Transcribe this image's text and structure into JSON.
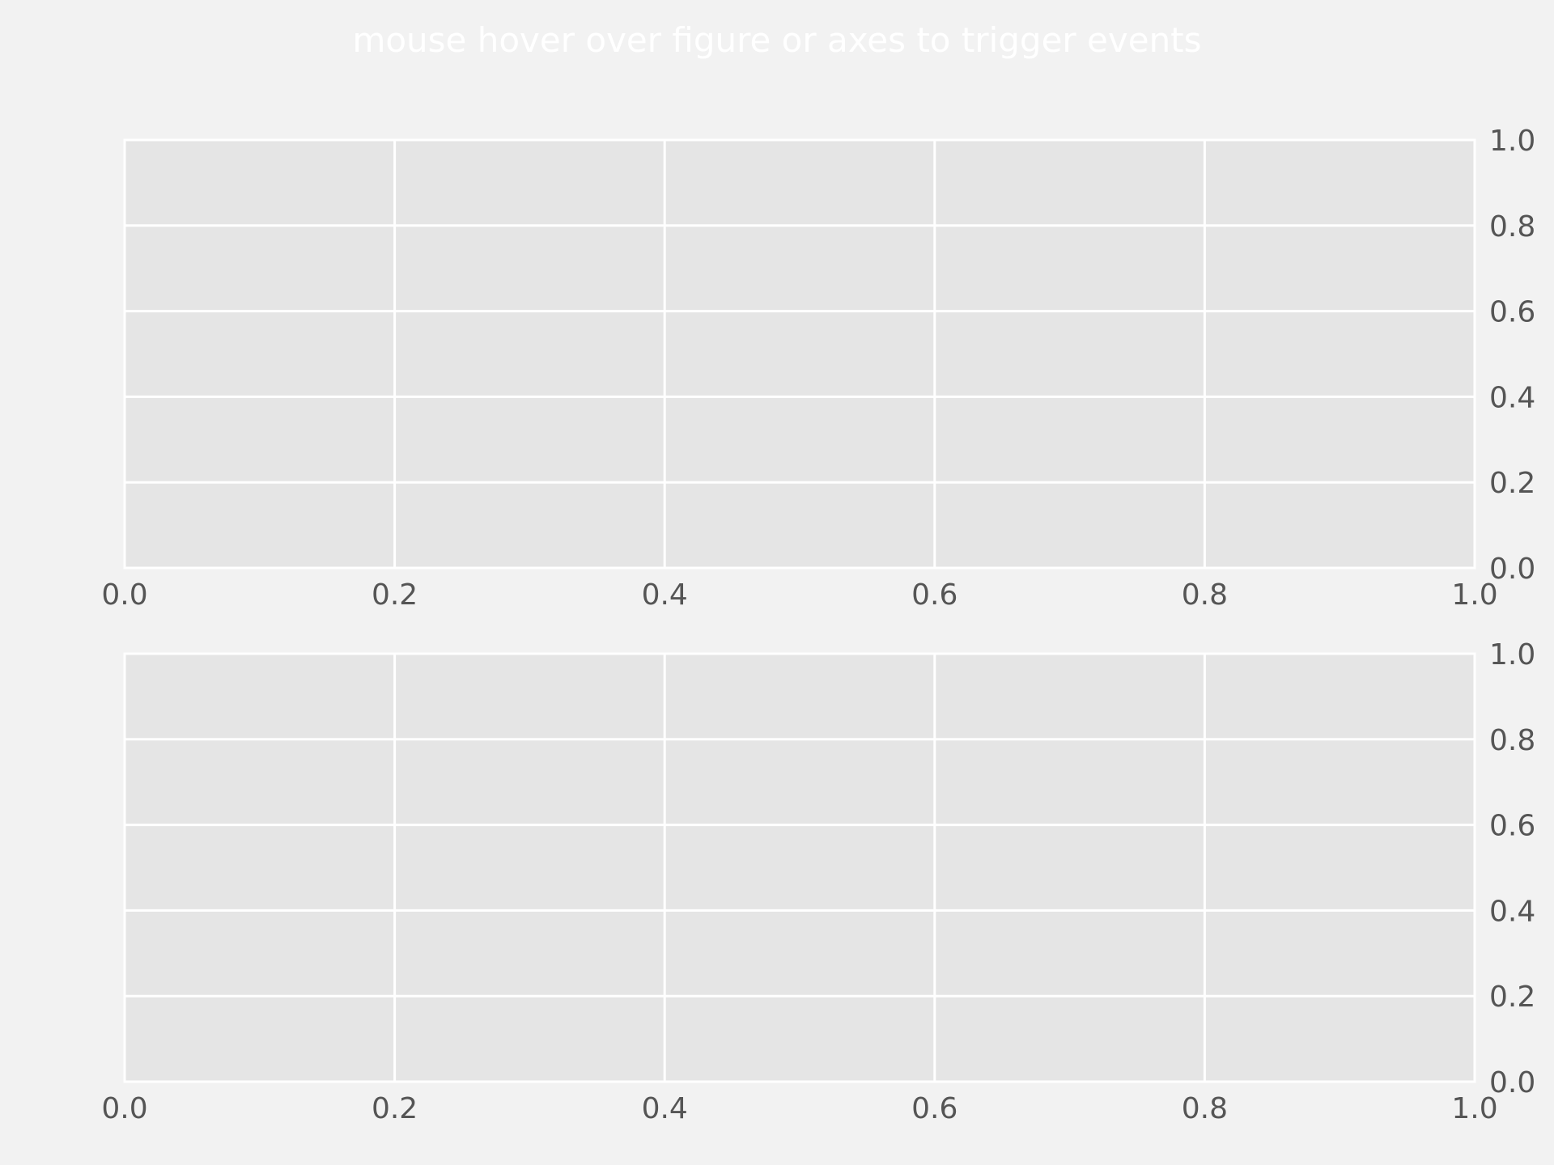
{
  "figure": {
    "suptitle": "mouse hover over figure or axes to trigger events",
    "background_color": "#f2f2f2",
    "axes_facecolor": "#e5e5e5",
    "grid_color": "#ffffff",
    "tick_label_color": "#555555",
    "suptitle_color": "#ffffff"
  },
  "chart_data": [
    {
      "type": "line",
      "series": [],
      "xlim": [
        0.0,
        1.0
      ],
      "ylim": [
        0.0,
        1.0
      ],
      "xticks": [
        0.0,
        0.2,
        0.4,
        0.6,
        0.8,
        1.0
      ],
      "yticks": [
        0.0,
        0.2,
        0.4,
        0.6,
        0.8,
        1.0
      ],
      "xtick_labels": [
        "0.0",
        "0.2",
        "0.4",
        "0.6",
        "0.8",
        "1.0"
      ],
      "ytick_labels": [
        "0.0",
        "0.2",
        "0.4",
        "0.6",
        "0.8",
        "1.0"
      ],
      "y_axis_side": "right",
      "grid": true
    },
    {
      "type": "line",
      "series": [],
      "xlim": [
        0.0,
        1.0
      ],
      "ylim": [
        0.0,
        1.0
      ],
      "xticks": [
        0.0,
        0.2,
        0.4,
        0.6,
        0.8,
        1.0
      ],
      "yticks": [
        0.0,
        0.2,
        0.4,
        0.6,
        0.8,
        1.0
      ],
      "xtick_labels": [
        "0.0",
        "0.2",
        "0.4",
        "0.6",
        "0.8",
        "1.0"
      ],
      "ytick_labels": [
        "0.0",
        "0.2",
        "0.4",
        "0.6",
        "0.8",
        "1.0"
      ],
      "y_axis_side": "right",
      "grid": true
    }
  ]
}
